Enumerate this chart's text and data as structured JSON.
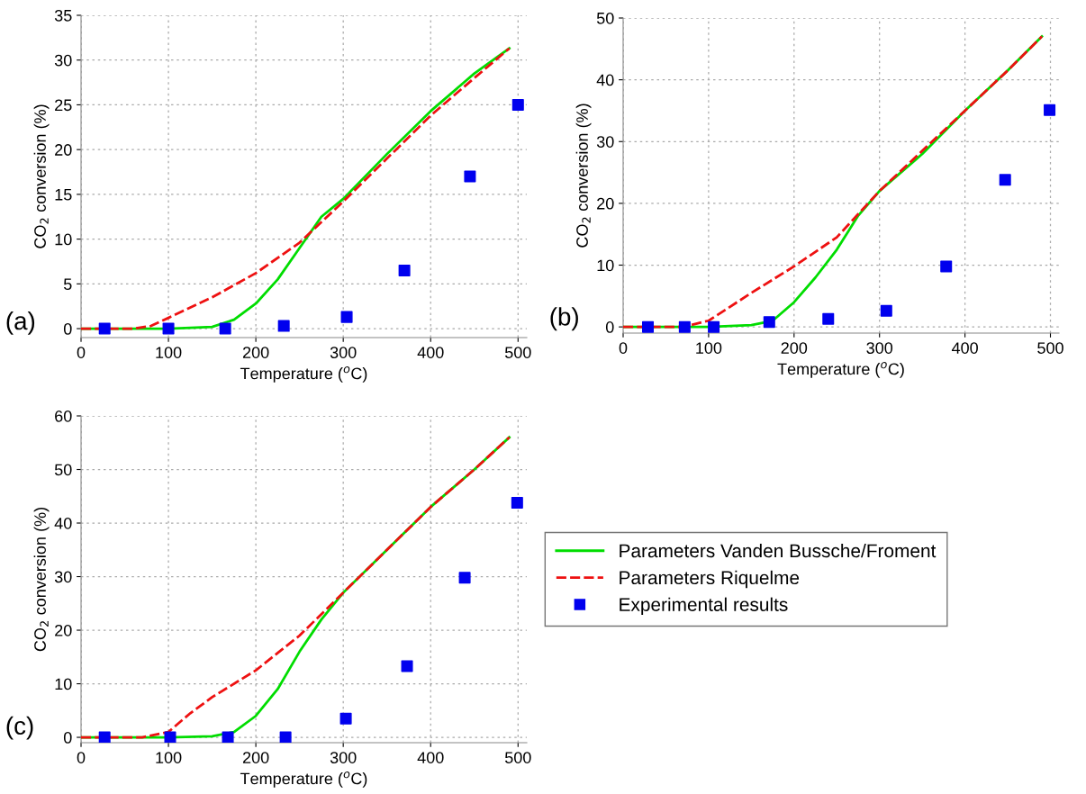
{
  "chart_data": [
    {
      "type": "line",
      "xlabel": "Temperature ($^{o}$C)",
      "ylabel": "CO$_{2}$ conversion (%)",
      "annotations": [
        "(a)"
      ],
      "xlim": [
        0,
        510
      ],
      "ylim": [
        -1,
        35
      ],
      "xticks": [
        0,
        100,
        200,
        300,
        400,
        500
      ],
      "yticks": [
        0,
        5,
        10,
        15,
        20,
        25,
        30,
        35
      ],
      "grid": true,
      "series": [
        {
          "color": "#00dd00",
          "line_style": "solid",
          "marker": "none",
          "x": [
            0,
            50,
            100,
            150,
            175,
            200,
            225,
            250,
            275,
            300,
            350,
            400,
            450,
            490
          ],
          "values": [
            0,
            0,
            0,
            0.2,
            1,
            2.8,
            5.5,
            9,
            12.5,
            14.5,
            19.5,
            24.3,
            28.5,
            31.3
          ]
        },
        {
          "color": "#ee1111",
          "line_style": "dashed",
          "marker": "none",
          "x": [
            0,
            60,
            80,
            100,
            150,
            200,
            250,
            300,
            350,
            400,
            450,
            490
          ],
          "values": [
            0,
            0,
            0.3,
            1.2,
            3.5,
            6.2,
            9.6,
            14.2,
            19,
            23.8,
            28,
            31.3
          ]
        },
        {
          "type": "scatter",
          "color": "#0000ee",
          "marker": "square",
          "x": [
            27,
            100,
            165,
            232,
            304,
            370,
            445,
            500
          ],
          "values": [
            0,
            0,
            0,
            0.3,
            1.3,
            6.5,
            17,
            25
          ]
        }
      ]
    },
    {
      "type": "line",
      "xlabel": "Temperature ($^{o}$C)",
      "ylabel": "CO$_{2}$ conversion (%)",
      "annotations": [
        "(b)"
      ],
      "xlim": [
        0,
        510
      ],
      "ylim": [
        -1,
        50
      ],
      "xticks": [
        0,
        100,
        200,
        300,
        400,
        500
      ],
      "yticks": [
        0,
        10,
        20,
        30,
        40,
        50
      ],
      "grid": true,
      "series": [
        {
          "color": "#00dd00",
          "line_style": "solid",
          "marker": "none",
          "x": [
            0,
            100,
            150,
            175,
            200,
            225,
            250,
            275,
            300,
            350,
            400,
            450,
            490
          ],
          "values": [
            0,
            0,
            0.3,
            1,
            4,
            8,
            12.5,
            18,
            22,
            28,
            35,
            41.5,
            47
          ]
        },
        {
          "color": "#ee1111",
          "line_style": "dashed",
          "marker": "none",
          "x": [
            0,
            70,
            100,
            150,
            200,
            250,
            290,
            300,
            350,
            400,
            450,
            490
          ],
          "values": [
            0,
            0,
            1,
            5.5,
            9.8,
            14.5,
            20.5,
            22,
            28.5,
            35,
            41.5,
            47
          ]
        },
        {
          "type": "scatter",
          "color": "#0000ee",
          "marker": "square",
          "x": [
            29,
            72,
            106,
            171,
            240,
            308,
            378,
            447,
            499
          ],
          "values": [
            0,
            0,
            0,
            0.8,
            1.3,
            2.6,
            9.8,
            23.8,
            35.1
          ]
        }
      ]
    },
    {
      "type": "line",
      "xlabel": "Temperature ($^{o}$C)",
      "ylabel": "CO$_{2}$ conversion (%)",
      "annotations": [
        "(c)"
      ],
      "xlim": [
        0,
        510
      ],
      "ylim": [
        -1,
        60
      ],
      "xticks": [
        0,
        100,
        200,
        300,
        400,
        500
      ],
      "yticks": [
        0,
        10,
        20,
        30,
        40,
        50,
        60
      ],
      "grid": true,
      "legend": "right",
      "series": [
        {
          "name": "Parameters Vanden Bussche/Froment",
          "color": "#00dd00",
          "line_style": "solid",
          "marker": "none",
          "x": [
            0,
            100,
            150,
            175,
            200,
            225,
            250,
            275,
            300,
            350,
            400,
            450,
            490
          ],
          "values": [
            0,
            0,
            0.2,
            1,
            4,
            9,
            16,
            22,
            27,
            35,
            43,
            50,
            56
          ]
        },
        {
          "name": "Parameters Riquelme",
          "color": "#ee1111",
          "line_style": "dashed",
          "marker": "none",
          "x": [
            0,
            70,
            100,
            125,
            150,
            200,
            250,
            275,
            300,
            350,
            400,
            450,
            490
          ],
          "values": [
            0,
            0,
            1,
            4.5,
            7.5,
            12.5,
            19,
            23,
            27,
            35,
            43,
            50,
            56
          ]
        },
        {
          "type": "scatter",
          "name": "Experimental results",
          "color": "#0000ee",
          "marker": "square",
          "x": [
            27,
            102,
            168,
            234,
            303,
            373,
            439,
            499
          ],
          "values": [
            0,
            0,
            0,
            0,
            3.5,
            13.3,
            29.8,
            43.8
          ]
        }
      ]
    }
  ]
}
